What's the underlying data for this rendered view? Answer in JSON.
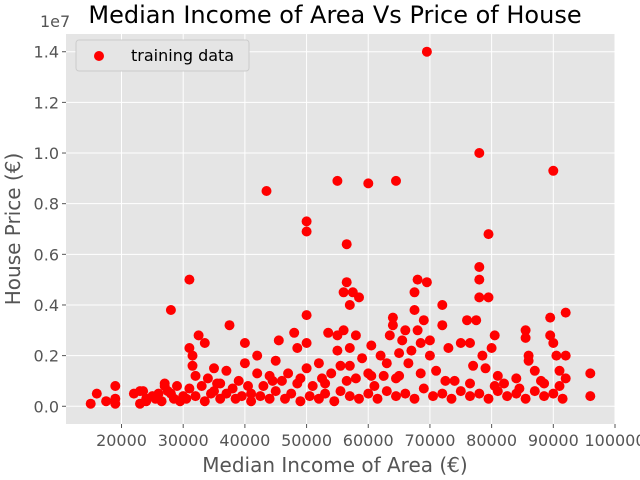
{
  "chart_data": {
    "type": "scatter",
    "title": "Median Income of Area Vs Price of House",
    "xlabel": "Median Income of Area (€)",
    "ylabel": "House Price (€)",
    "y_offset_text": "1e7",
    "xlim": [
      11000,
      100000
    ],
    "ylim": [
      -0.07,
      1.47
    ],
    "x_ticks": [
      20000,
      30000,
      40000,
      50000,
      60000,
      70000,
      80000,
      90000,
      100000
    ],
    "y_ticks": [
      0.0,
      0.2,
      0.4,
      0.6,
      0.8,
      1.0,
      1.2,
      1.4
    ],
    "x_tick_labels": [
      "20000",
      "30000",
      "40000",
      "50000",
      "60000",
      "70000",
      "80000",
      "90000",
      "100000"
    ],
    "y_tick_labels": [
      "0.0",
      "0.2",
      "0.4",
      "0.6",
      "0.8",
      "1.0",
      "1.2",
      "1.4"
    ],
    "grid": true,
    "background": "#e5e5e5",
    "legend": {
      "position": "top-left",
      "entries": [
        "training data"
      ]
    },
    "series": [
      {
        "name": "training data",
        "color": "#ff0000",
        "points": [
          [
            15000,
            0.01
          ],
          [
            16000,
            0.05
          ],
          [
            17500,
            0.02
          ],
          [
            19000,
            0.08
          ],
          [
            19000,
            0.03
          ],
          [
            19000,
            0.01
          ],
          [
            22000,
            0.05
          ],
          [
            23000,
            0.06
          ],
          [
            24000,
            0.03
          ],
          [
            25000,
            0.04
          ],
          [
            26000,
            0.05
          ],
          [
            27000,
            0.09
          ],
          [
            27500,
            0.06
          ],
          [
            28000,
            0.38
          ],
          [
            28000,
            0.05
          ],
          [
            29000,
            0.08
          ],
          [
            30000,
            0.04
          ],
          [
            31000,
            0.5
          ],
          [
            31000,
            0.23
          ],
          [
            31500,
            0.2
          ],
          [
            31500,
            0.16
          ],
          [
            32000,
            0.12
          ],
          [
            32500,
            0.28
          ],
          [
            33000,
            0.08
          ],
          [
            33500,
            0.25
          ],
          [
            34000,
            0.11
          ],
          [
            35000,
            0.15
          ],
          [
            35000,
            0.06
          ],
          [
            36000,
            0.09
          ],
          [
            37000,
            0.14
          ],
          [
            37500,
            0.32
          ],
          [
            38000,
            0.07
          ],
          [
            39000,
            0.1
          ],
          [
            40000,
            0.25
          ],
          [
            40000,
            0.17
          ],
          [
            41000,
            0.05
          ],
          [
            42000,
            0.2
          ],
          [
            42000,
            0.13
          ],
          [
            43000,
            0.08
          ],
          [
            43500,
            0.85
          ],
          [
            44000,
            0.12
          ],
          [
            45000,
            0.18
          ],
          [
            45500,
            0.26
          ],
          [
            46000,
            0.1
          ],
          [
            47000,
            0.13
          ],
          [
            48000,
            0.29
          ],
          [
            48500,
            0.23
          ],
          [
            49000,
            0.11
          ],
          [
            50000,
            0.73
          ],
          [
            50000,
            0.69
          ],
          [
            50000,
            0.36
          ],
          [
            50000,
            0.25
          ],
          [
            50000,
            0.15
          ],
          [
            51000,
            0.08
          ],
          [
            52000,
            0.17
          ],
          [
            53000,
            0.09
          ],
          [
            53500,
            0.29
          ],
          [
            54000,
            0.13
          ],
          [
            55000,
            0.89
          ],
          [
            55000,
            0.28
          ],
          [
            55000,
            0.22
          ],
          [
            55500,
            0.16
          ],
          [
            56000,
            0.45
          ],
          [
            56000,
            0.3
          ],
          [
            56500,
            0.64
          ],
          [
            56500,
            0.49
          ],
          [
            57000,
            0.23
          ],
          [
            57000,
            0.4
          ],
          [
            57000,
            0.16
          ],
          [
            57500,
            0.45
          ],
          [
            58000,
            0.28
          ],
          [
            58000,
            0.11
          ],
          [
            58500,
            0.43
          ],
          [
            59000,
            0.19
          ],
          [
            60000,
            0.88
          ],
          [
            60000,
            0.13
          ],
          [
            60500,
            0.24
          ],
          [
            61000,
            0.08
          ],
          [
            62000,
            0.2
          ],
          [
            62500,
            0.12
          ],
          [
            63000,
            0.17
          ],
          [
            63500,
            0.28
          ],
          [
            64000,
            0.35
          ],
          [
            64000,
            0.32
          ],
          [
            64500,
            0.89
          ],
          [
            65000,
            0.21
          ],
          [
            65000,
            0.12
          ],
          [
            65500,
            0.26
          ],
          [
            66000,
            0.3
          ],
          [
            66500,
            0.17
          ],
          [
            67000,
            0.22
          ],
          [
            67500,
            0.38
          ],
          [
            67500,
            0.45
          ],
          [
            68000,
            0.3
          ],
          [
            68000,
            0.5
          ],
          [
            68500,
            0.25
          ],
          [
            69000,
            0.34
          ],
          [
            69500,
            0.49
          ],
          [
            69500,
            1.4
          ],
          [
            70000,
            0.26
          ],
          [
            70000,
            0.2
          ],
          [
            71000,
            0.14
          ],
          [
            72000,
            0.32
          ],
          [
            72000,
            0.4
          ],
          [
            73000,
            0.23
          ],
          [
            74000,
            0.1
          ],
          [
            75000,
            0.25
          ],
          [
            76000,
            0.34
          ],
          [
            76500,
            0.25
          ],
          [
            77000,
            0.16
          ],
          [
            77500,
            0.34
          ],
          [
            78000,
            1.0
          ],
          [
            78000,
            0.55
          ],
          [
            78000,
            0.5
          ],
          [
            78000,
            0.43
          ],
          [
            78500,
            0.2
          ],
          [
            79000,
            0.15
          ],
          [
            79500,
            0.43
          ],
          [
            79500,
            0.68
          ],
          [
            80000,
            0.23
          ],
          [
            80500,
            0.28
          ],
          [
            81000,
            0.12
          ],
          [
            82000,
            0.09
          ],
          [
            84000,
            0.11
          ],
          [
            85500,
            0.3
          ],
          [
            85500,
            0.27
          ],
          [
            86000,
            0.18
          ],
          [
            86000,
            0.2
          ],
          [
            87000,
            0.14
          ],
          [
            88000,
            0.1
          ],
          [
            89500,
            0.35
          ],
          [
            89500,
            0.28
          ],
          [
            90000,
            0.93
          ],
          [
            90000,
            0.25
          ],
          [
            90500,
            0.2
          ],
          [
            91000,
            0.14
          ],
          [
            92000,
            0.37
          ],
          [
            92000,
            0.2
          ],
          [
            92000,
            0.11
          ],
          [
            96000,
            0.13
          ],
          [
            96000,
            0.04
          ],
          [
            23000,
            0.01
          ],
          [
            24000,
            0.02
          ],
          [
            25500,
            0.03
          ],
          [
            26500,
            0.02
          ],
          [
            28500,
            0.03
          ],
          [
            29500,
            0.02
          ],
          [
            30500,
            0.03
          ],
          [
            32000,
            0.04
          ],
          [
            33500,
            0.02
          ],
          [
            34500,
            0.05
          ],
          [
            36000,
            0.03
          ],
          [
            37000,
            0.05
          ],
          [
            38500,
            0.03
          ],
          [
            39500,
            0.04
          ],
          [
            41000,
            0.02
          ],
          [
            42500,
            0.04
          ],
          [
            44000,
            0.03
          ],
          [
            45000,
            0.06
          ],
          [
            46500,
            0.03
          ],
          [
            47500,
            0.05
          ],
          [
            49000,
            0.02
          ],
          [
            50500,
            0.04
          ],
          [
            52000,
            0.03
          ],
          [
            53000,
            0.05
          ],
          [
            54500,
            0.02
          ],
          [
            55500,
            0.06
          ],
          [
            57000,
            0.04
          ],
          [
            58500,
            0.03
          ],
          [
            60000,
            0.05
          ],
          [
            61500,
            0.03
          ],
          [
            63000,
            0.06
          ],
          [
            64500,
            0.04
          ],
          [
            66000,
            0.05
          ],
          [
            67500,
            0.03
          ],
          [
            69000,
            0.07
          ],
          [
            70500,
            0.04
          ],
          [
            72000,
            0.05
          ],
          [
            73500,
            0.03
          ],
          [
            75000,
            0.06
          ],
          [
            76500,
            0.04
          ],
          [
            78000,
            0.05
          ],
          [
            79500,
            0.03
          ],
          [
            81000,
            0.06
          ],
          [
            82500,
            0.04
          ],
          [
            84000,
            0.05
          ],
          [
            85500,
            0.03
          ],
          [
            87000,
            0.06
          ],
          [
            88500,
            0.04
          ],
          [
            90000,
            0.05
          ],
          [
            91500,
            0.03
          ],
          [
            23500,
            0.06
          ],
          [
            27000,
            0.08
          ],
          [
            31000,
            0.07
          ],
          [
            35500,
            0.09
          ],
          [
            40500,
            0.08
          ],
          [
            44500,
            0.1
          ],
          [
            48500,
            0.09
          ],
          [
            52500,
            0.11
          ],
          [
            56500,
            0.1
          ],
          [
            60500,
            0.12
          ],
          [
            64500,
            0.11
          ],
          [
            68500,
            0.13
          ],
          [
            72500,
            0.1
          ],
          [
            76500,
            0.09
          ],
          [
            80500,
            0.08
          ],
          [
            84500,
            0.07
          ],
          [
            88500,
            0.09
          ],
          [
            91000,
            0.08
          ]
        ]
      }
    ]
  }
}
